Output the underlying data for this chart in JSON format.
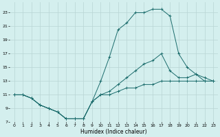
{
  "xlabel": "Humidex (Indice chaleur)",
  "background_color": "#d4efee",
  "grid_color": "#b8d4d4",
  "line_color": "#1a6b6b",
  "xlim": [
    -0.5,
    23.5
  ],
  "ylim": [
    7,
    24.5
  ],
  "xticks": [
    0,
    1,
    2,
    3,
    4,
    5,
    6,
    7,
    8,
    9,
    10,
    11,
    12,
    13,
    14,
    15,
    16,
    17,
    18,
    19,
    20,
    21,
    22,
    23
  ],
  "yticks": [
    7,
    9,
    11,
    13,
    15,
    17,
    19,
    21,
    23
  ],
  "line1_x": [
    0,
    1,
    2,
    3,
    4,
    5,
    6,
    7,
    8,
    9,
    10,
    11,
    12,
    13,
    14,
    15,
    16,
    17,
    18,
    19,
    20,
    21,
    22,
    23
  ],
  "line1_y": [
    11,
    11,
    10.5,
    9.5,
    9.0,
    8.5,
    7.5,
    7.5,
    7.5,
    10.0,
    13.0,
    16.5,
    20.5,
    21.5,
    23.0,
    23.0,
    23.5,
    23.5,
    22.5,
    17.0,
    15.0,
    14.0,
    13.0,
    13.0
  ],
  "line2_x": [
    0,
    1,
    2,
    3,
    4,
    5,
    6,
    7,
    8,
    9,
    10,
    11,
    12,
    13,
    14,
    15,
    16,
    17,
    18,
    19,
    20,
    21,
    22,
    23
  ],
  "line2_y": [
    11,
    11,
    10.5,
    9.5,
    9.0,
    8.5,
    7.5,
    7.5,
    7.5,
    10.0,
    11.0,
    11.5,
    12.5,
    13.5,
    14.5,
    15.5,
    16.0,
    17.0,
    14.5,
    13.5,
    13.5,
    14.0,
    13.5,
    13.0
  ],
  "line3_x": [
    0,
    1,
    2,
    3,
    4,
    5,
    6,
    7,
    8,
    9,
    10,
    11,
    12,
    13,
    14,
    15,
    16,
    17,
    18,
    19,
    20,
    21,
    22,
    23
  ],
  "line3_y": [
    11,
    11,
    10.5,
    9.5,
    9.0,
    8.5,
    7.5,
    7.5,
    7.5,
    10.0,
    11.0,
    11.0,
    11.5,
    12.0,
    12.0,
    12.5,
    12.5,
    13.0,
    13.0,
    13.0,
    13.0,
    13.0,
    13.0,
    13.0
  ]
}
